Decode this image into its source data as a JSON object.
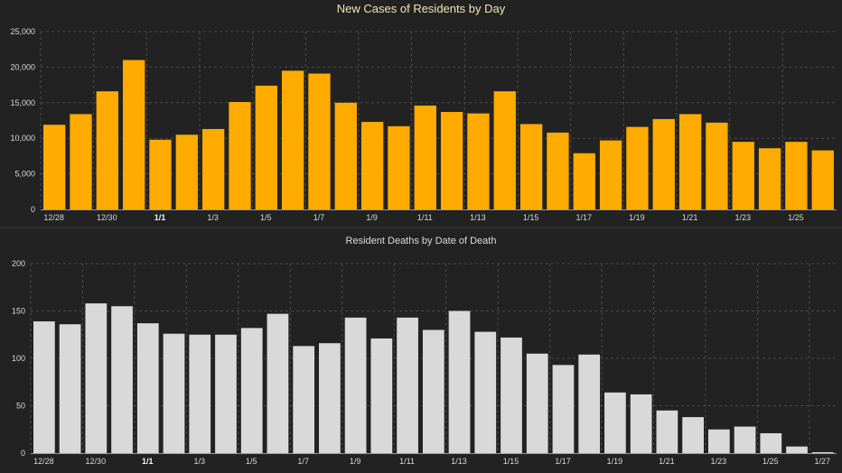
{
  "chart_data": [
    {
      "type": "bar",
      "title": "New Cases of Residents by Day",
      "xlabel": "",
      "ylabel": "",
      "color": "#ffab00",
      "categories": [
        "12/28",
        "12/29",
        "12/30",
        "12/31",
        "1/1",
        "1/2",
        "1/3",
        "1/4",
        "1/5",
        "1/6",
        "1/7",
        "1/8",
        "1/9",
        "1/10",
        "1/11",
        "1/12",
        "1/13",
        "1/14",
        "1/15",
        "1/16",
        "1/17",
        "1/18",
        "1/19",
        "1/20",
        "1/21",
        "1/22",
        "1/23",
        "1/24",
        "1/25",
        "1/26"
      ],
      "tick_labels": [
        "12/28",
        "12/30",
        "1/1",
        "1/3",
        "1/5",
        "1/7",
        "1/9",
        "1/11",
        "1/13",
        "1/15",
        "1/17",
        "1/19",
        "1/21",
        "1/23",
        "1/25"
      ],
      "bold_ticks": [
        "1/1"
      ],
      "values": [
        11900,
        13400,
        16600,
        21000,
        9800,
        10500,
        11300,
        15100,
        17400,
        19500,
        19100,
        15000,
        12300,
        11700,
        14600,
        13700,
        13500,
        16600,
        12000,
        10800,
        7900,
        9700,
        11600,
        12700,
        13400,
        12200,
        9500,
        8600,
        9500,
        8300
      ],
      "ylim": [
        0,
        25000
      ],
      "yticks": [
        "0",
        "5,000",
        "10,000",
        "15,000",
        "20,000",
        "25,000"
      ],
      "grid": true
    },
    {
      "type": "bar",
      "title": "Resident Deaths by Date of Death",
      "xlabel": "",
      "ylabel": "",
      "color": "#d9d9d9",
      "categories": [
        "12/28",
        "12/29",
        "12/30",
        "12/31",
        "1/1",
        "1/2",
        "1/3",
        "1/4",
        "1/5",
        "1/6",
        "1/7",
        "1/8",
        "1/9",
        "1/10",
        "1/11",
        "1/12",
        "1/13",
        "1/14",
        "1/15",
        "1/16",
        "1/17",
        "1/18",
        "1/19",
        "1/20",
        "1/21",
        "1/22",
        "1/23",
        "1/24",
        "1/25",
        "1/26",
        "1/27"
      ],
      "tick_labels": [
        "12/28",
        "12/30",
        "1/1",
        "1/3",
        "1/5",
        "1/7",
        "1/9",
        "1/11",
        "1/13",
        "1/15",
        "1/17",
        "1/19",
        "1/21",
        "1/23",
        "1/25",
        "1/27"
      ],
      "bold_ticks": [
        "1/1"
      ],
      "values": [
        139,
        136,
        158,
        155,
        137,
        126,
        125,
        125,
        132,
        147,
        113,
        116,
        143,
        121,
        143,
        130,
        150,
        128,
        122,
        105,
        93,
        104,
        64,
        62,
        45,
        38,
        25,
        28,
        21,
        7,
        1
      ],
      "ylim": [
        0,
        200
      ],
      "yticks": [
        "0",
        "50",
        "100",
        "150",
        "200"
      ],
      "grid": true
    }
  ]
}
